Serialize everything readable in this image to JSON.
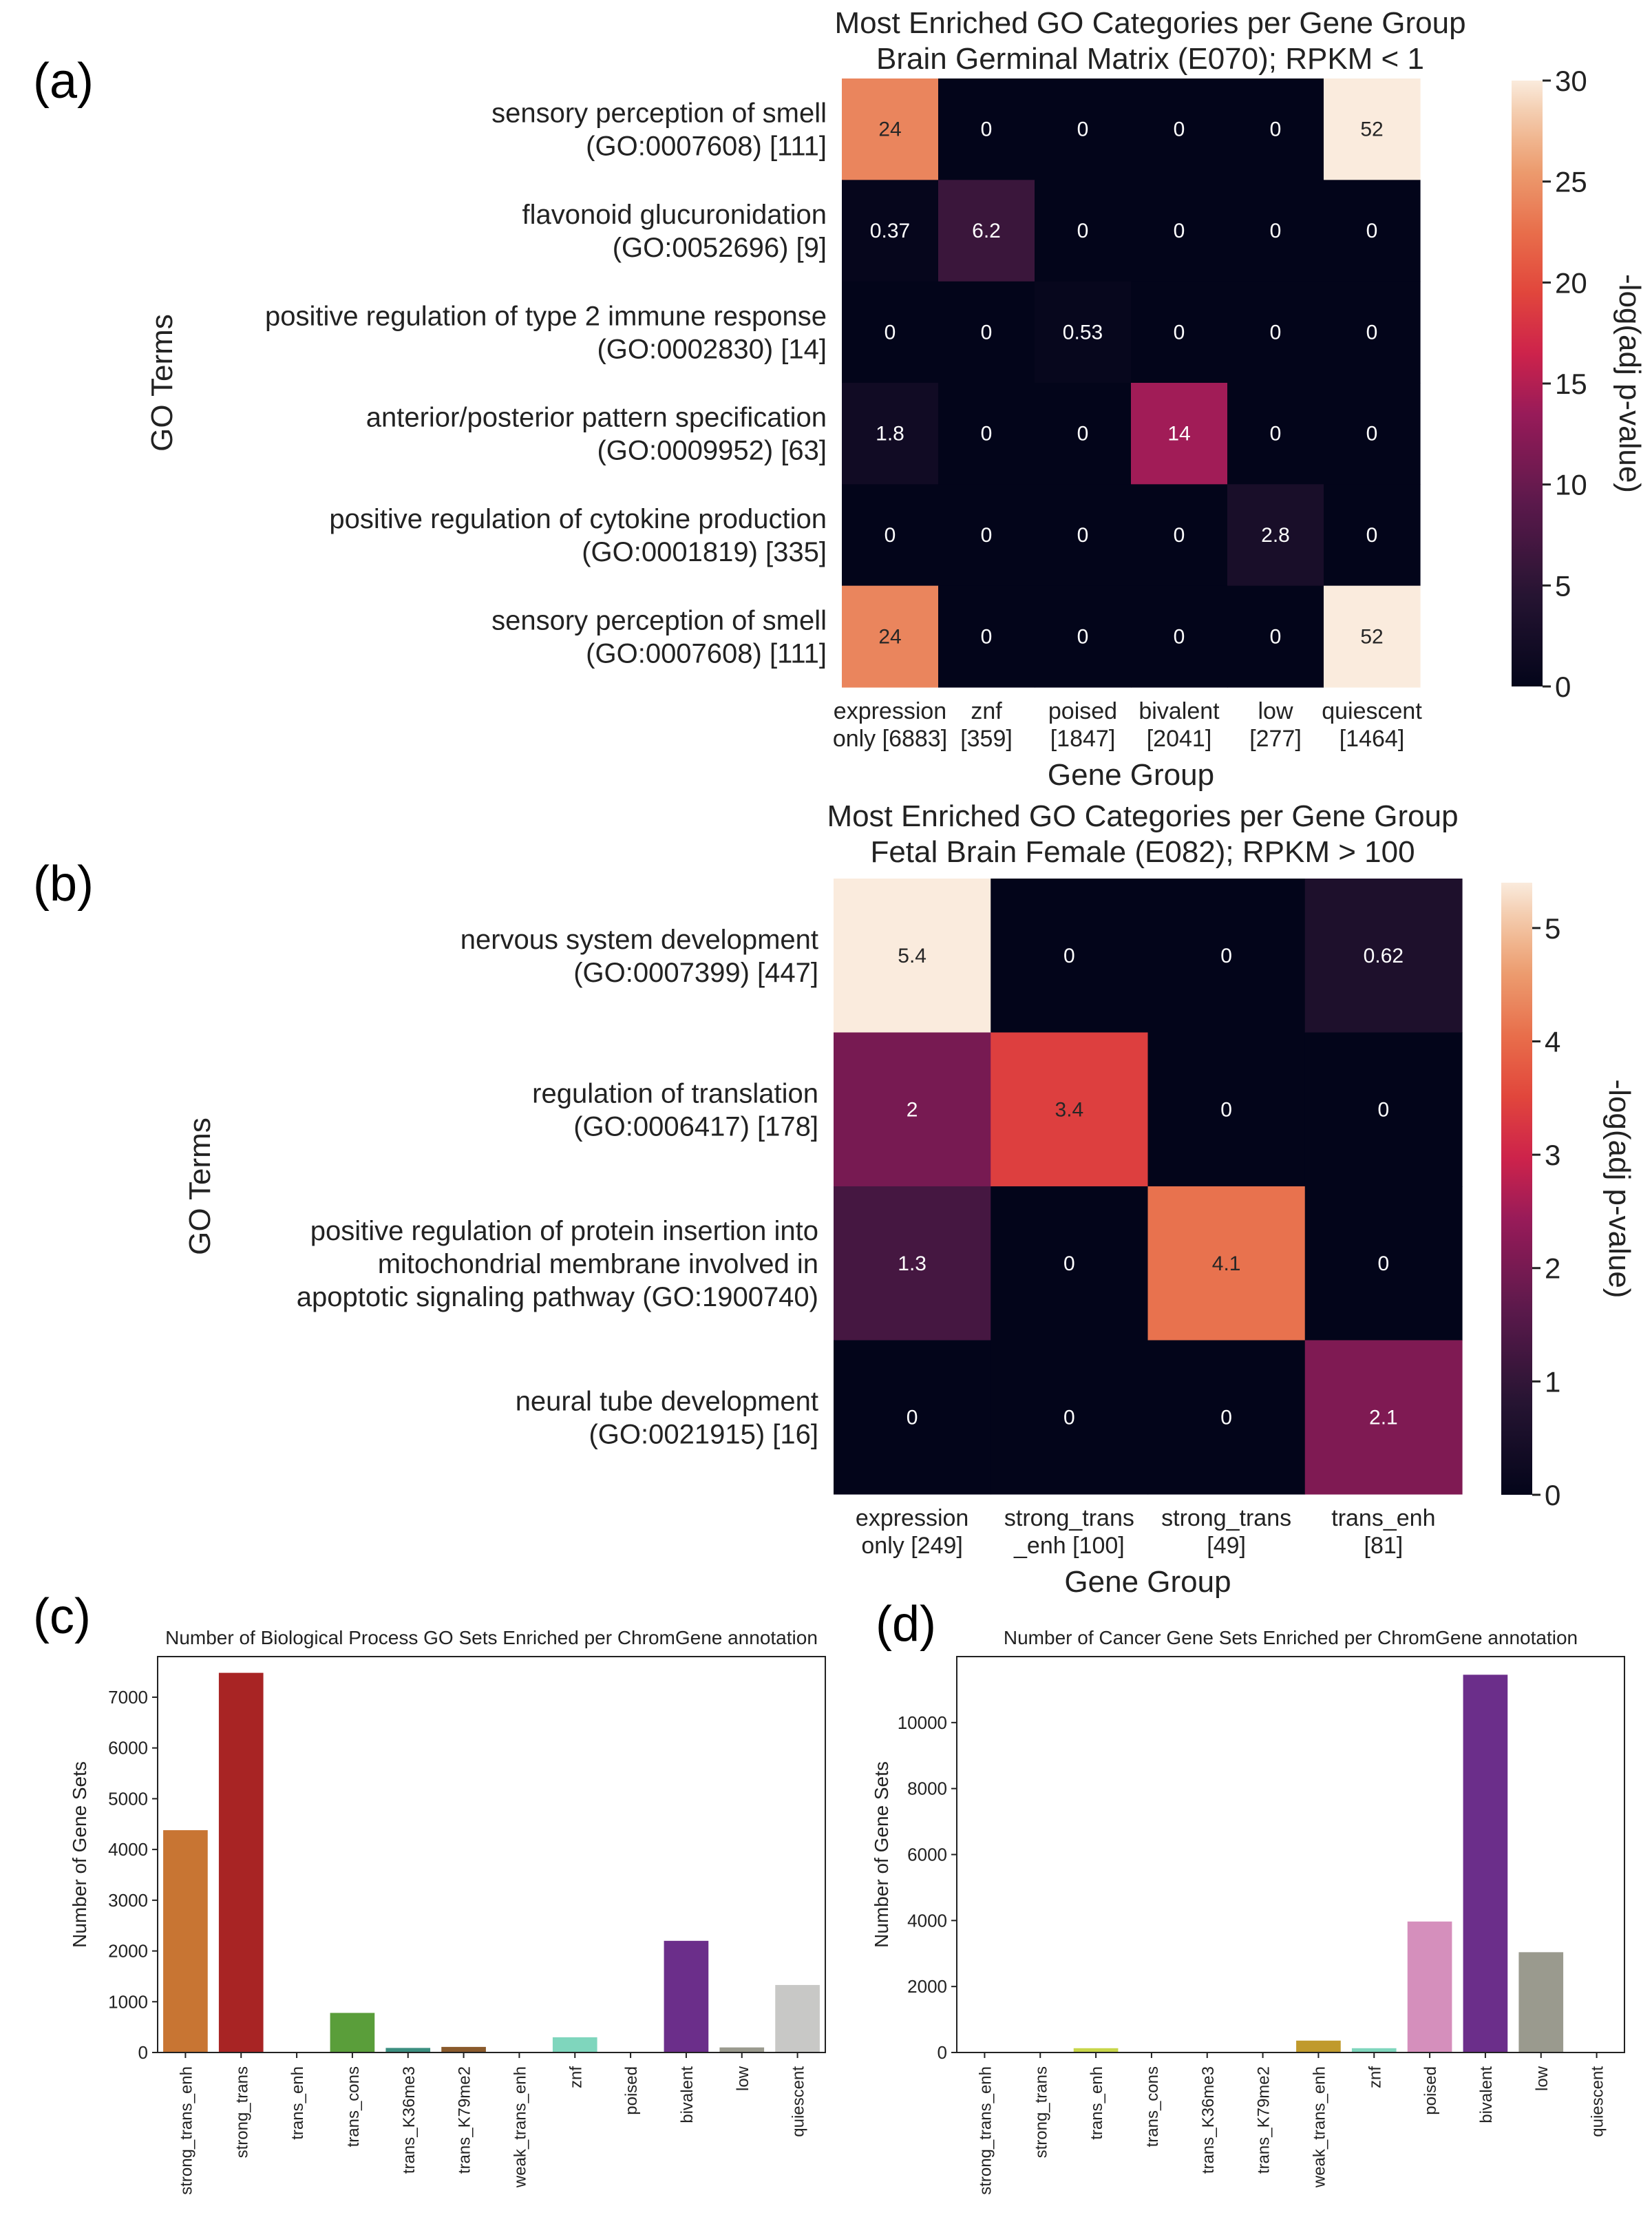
{
  "panel_labels": [
    "(a)",
    "(b)",
    "(c)",
    "(d)"
  ],
  "chart_data": [
    {
      "type": "heatmap",
      "title": "Most Enriched GO Categories per Gene Group",
      "subtitle": "Brain Germinal Matrix (E070); RPKM < 1",
      "xlabel": "Gene Group",
      "ylabel": "GO Terms",
      "colorbar_label": "-log(adj p-value)",
      "colorbar_ticks": [
        0,
        5,
        10,
        15,
        20,
        25,
        30
      ],
      "vmin": 0,
      "vmax": 30,
      "x_labels": [
        [
          "expression",
          "only [6883]"
        ],
        [
          "znf",
          "[359]"
        ],
        [
          "poised",
          "[1847]"
        ],
        [
          "bivalent",
          "[2041]"
        ],
        [
          "low",
          "[277]"
        ],
        [
          "quiescent",
          "[1464]"
        ]
      ],
      "y_labels": [
        [
          "sensory perception of smell",
          "(GO:0007608) [111]"
        ],
        [
          "flavonoid glucuronidation",
          "(GO:0052696) [9]"
        ],
        [
          "positive regulation of type 2 immune response",
          "(GO:0002830) [14]"
        ],
        [
          "anterior/posterior pattern specification",
          "(GO:0009952) [63]"
        ],
        [
          "positive regulation of cytokine production",
          "(GO:0001819) [335]"
        ],
        [
          "sensory perception of smell",
          "(GO:0007608) [111]"
        ]
      ],
      "values": [
        [
          24,
          0,
          0,
          0,
          0,
          52
        ],
        [
          0.37,
          6.2,
          0,
          0,
          0,
          0
        ],
        [
          0,
          0,
          0.53,
          0,
          0,
          0
        ],
        [
          1.8,
          0,
          0,
          14,
          0,
          0
        ],
        [
          0,
          0,
          0,
          0,
          2.8,
          0
        ],
        [
          24,
          0,
          0,
          0,
          0,
          52
        ]
      ]
    },
    {
      "type": "heatmap",
      "title": "Most Enriched GO Categories per Gene Group",
      "subtitle": "Fetal Brain Female (E082); RPKM > 100",
      "xlabel": "Gene Group",
      "ylabel": "GO Terms",
      "colorbar_label": "-log(adj p-value)",
      "colorbar_ticks": [
        0,
        1,
        2,
        3,
        4,
        5
      ],
      "vmin": 0,
      "vmax": 5.4,
      "x_labels": [
        [
          "expression",
          "only [249]"
        ],
        [
          "strong_trans",
          "_enh [100]"
        ],
        [
          "strong_trans",
          "[49]"
        ],
        [
          "trans_enh",
          "[81]"
        ]
      ],
      "y_labels": [
        [
          "nervous system development",
          "(GO:0007399) [447]"
        ],
        [
          "regulation of translation",
          "(GO:0006417) [178]"
        ],
        [
          "positive regulation of protein insertion into",
          "mitochondrial membrane involved in",
          "apoptotic signaling pathway (GO:1900740)"
        ],
        [
          "neural tube development",
          "(GO:0021915) [16]"
        ]
      ],
      "values": [
        [
          5.4,
          0,
          0,
          0.62
        ],
        [
          2,
          3.4,
          0,
          0
        ],
        [
          1.3,
          0,
          4.1,
          0
        ],
        [
          0,
          0,
          0,
          2.1
        ]
      ]
    },
    {
      "type": "bar",
      "title": "Number of Biological Process GO Sets Enriched per ChromGene annotation",
      "xlabel": "",
      "ylabel": "Number of Gene Sets",
      "ylim": [
        0,
        7800
      ],
      "yticks": [
        0,
        1000,
        2000,
        3000,
        4000,
        5000,
        6000,
        7000
      ],
      "grid": false,
      "categories": [
        "strong_trans_enh",
        "strong_trans",
        "trans_enh",
        "trans_cons",
        "trans_K36me3",
        "trans_K79me2",
        "weak_trans_enh",
        "znf",
        "poised",
        "bivalent",
        "low",
        "quiescent"
      ],
      "values": [
        4380,
        7480,
        0,
        780,
        90,
        110,
        0,
        300,
        0,
        2200,
        100,
        1330
      ],
      "colors": [
        "#c87533",
        "#a82424",
        "#d6b84a",
        "#5a9e3a",
        "#3b8f80",
        "#8a5a2c",
        "#c09a50",
        "#7fd6bd",
        "#d58fbc",
        "#6b2e8a",
        "#9a9a8e",
        "#c8c8c6"
      ]
    },
    {
      "type": "bar",
      "title": "Number of Cancer Gene Sets Enriched per ChromGene annotation",
      "xlabel": "",
      "ylabel": "Number of Gene Sets",
      "ylim": [
        0,
        12000
      ],
      "yticks": [
        0,
        2000,
        4000,
        6000,
        8000,
        10000
      ],
      "grid": false,
      "categories": [
        "strong_trans_enh",
        "strong_trans",
        "trans_enh",
        "trans_cons",
        "trans_K36me3",
        "trans_K79me2",
        "weak_trans_enh",
        "znf",
        "poised",
        "bivalent",
        "low",
        "quiescent"
      ],
      "values": [
        0,
        0,
        130,
        0,
        0,
        0,
        360,
        130,
        3970,
        11450,
        3040,
        0
      ],
      "colors": [
        "#c87533",
        "#a82424",
        "#c8d64a",
        "#5a9e3a",
        "#3b8f80",
        "#8a5a2c",
        "#c09a2c",
        "#7fd6bd",
        "#d58fbc",
        "#6b2e8a",
        "#9a9a8e",
        "#c8c8c6"
      ]
    }
  ]
}
